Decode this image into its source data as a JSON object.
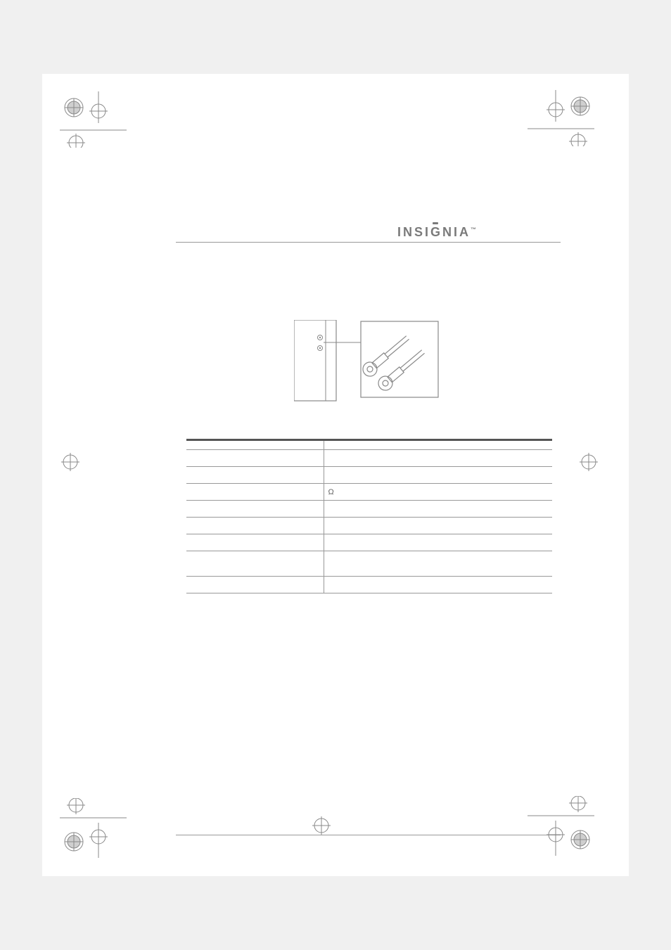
{
  "brand": {
    "name": "INSIGNIA",
    "accent_char_index": 4,
    "trademark": "™"
  },
  "diagram": {
    "box_stroke": "#888888",
    "box_fill": "#ffffff",
    "cable_color": "#888888"
  },
  "spec_table": {
    "border_color": "#999999",
    "header_border_color": "#555555",
    "text_color": "#666666",
    "rows": [
      {
        "left": "",
        "right": "",
        "cls": "header-row"
      },
      {
        "left": "",
        "right": ""
      },
      {
        "left": "",
        "right": ""
      },
      {
        "left": "",
        "right": "Ω",
        "omega": true
      },
      {
        "left": "",
        "right": ""
      },
      {
        "left": "",
        "right": ""
      },
      {
        "left": "",
        "right": ""
      },
      {
        "left": "",
        "right": "",
        "cls": "tall"
      },
      {
        "left": "",
        "right": ""
      }
    ]
  },
  "crop_marks": {
    "stroke": "#888888",
    "circle_fill": "#bfbfbf"
  }
}
